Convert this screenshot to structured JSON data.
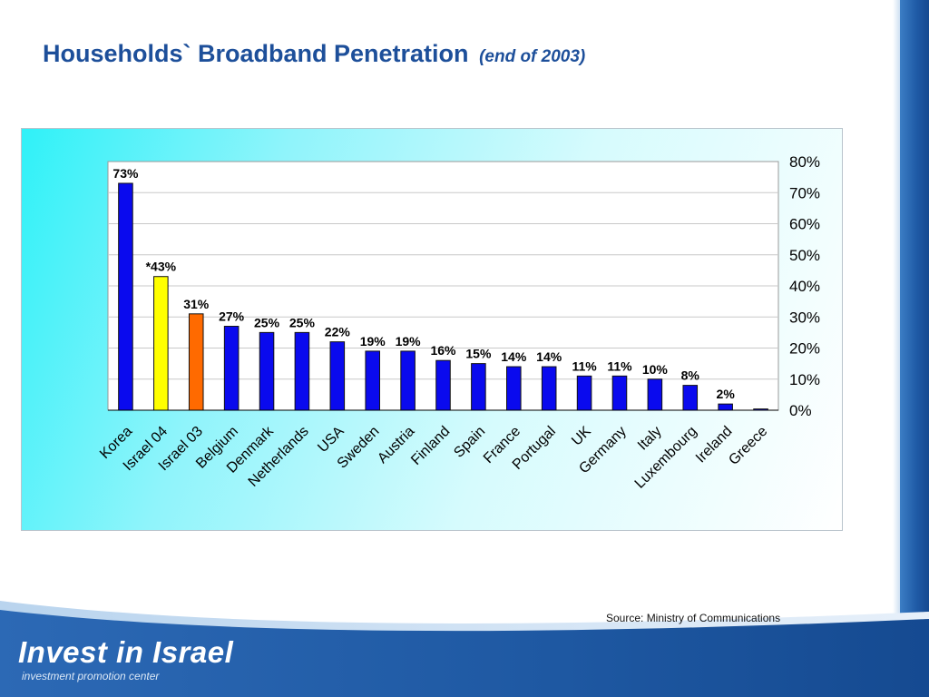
{
  "slide": {
    "title": "Households` Broadband Penetration",
    "subtitle": "(end of 2003)",
    "source": "Source: Ministry of Communications",
    "logo_text": "Invest in Israel",
    "logo_tagline": "investment promotion center"
  },
  "colors": {
    "title": "#1d4f9a",
    "bar_default": "#0a0aee",
    "bar_israel04": "#ffff00",
    "bar_israel03": "#ff6a00",
    "bar_outline": "#111111",
    "footer_blue": "#1d5aa3"
  },
  "chart_data": {
    "type": "bar",
    "title": "Households` Broadband Penetration",
    "subtitle": "(end of 2003)",
    "categories": [
      "Korea",
      "Israel 04",
      "Israel 03",
      "Belgium",
      "Denmark",
      "Netherlands",
      "USA",
      "Sweden",
      "Austria",
      "Finland",
      "Spain",
      "France",
      "Portugal",
      "UK",
      "Germany",
      "Italy",
      "Luxembourg",
      "Ireland",
      "Greece"
    ],
    "values": [
      73,
      43,
      31,
      27,
      25,
      25,
      22,
      19,
      19,
      16,
      15,
      14,
      14,
      11,
      11,
      10,
      8,
      2,
      0.4
    ],
    "value_labels": [
      "73%",
      "*43%",
      "31%",
      "27%",
      "25%",
      "25%",
      "22%",
      "19%",
      "19%",
      "16%",
      "15%",
      "14%",
      "14%",
      "11%",
      "11%",
      "10%",
      "8%",
      "2%",
      ""
    ],
    "bar_colors": [
      "#0a0aee",
      "#ffff00",
      "#ff6a00",
      "#0a0aee",
      "#0a0aee",
      "#0a0aee",
      "#0a0aee",
      "#0a0aee",
      "#0a0aee",
      "#0a0aee",
      "#0a0aee",
      "#0a0aee",
      "#0a0aee",
      "#0a0aee",
      "#0a0aee",
      "#0a0aee",
      "#0a0aee",
      "#0a0aee",
      "#0a0aee"
    ],
    "ylim": [
      0,
      80
    ],
    "yticks": [
      "0%",
      "10%",
      "20%",
      "30%",
      "40%",
      "50%",
      "60%",
      "70%",
      "80%"
    ],
    "y_axis_position": "right",
    "grid": true,
    "xlabel": "",
    "ylabel": ""
  }
}
